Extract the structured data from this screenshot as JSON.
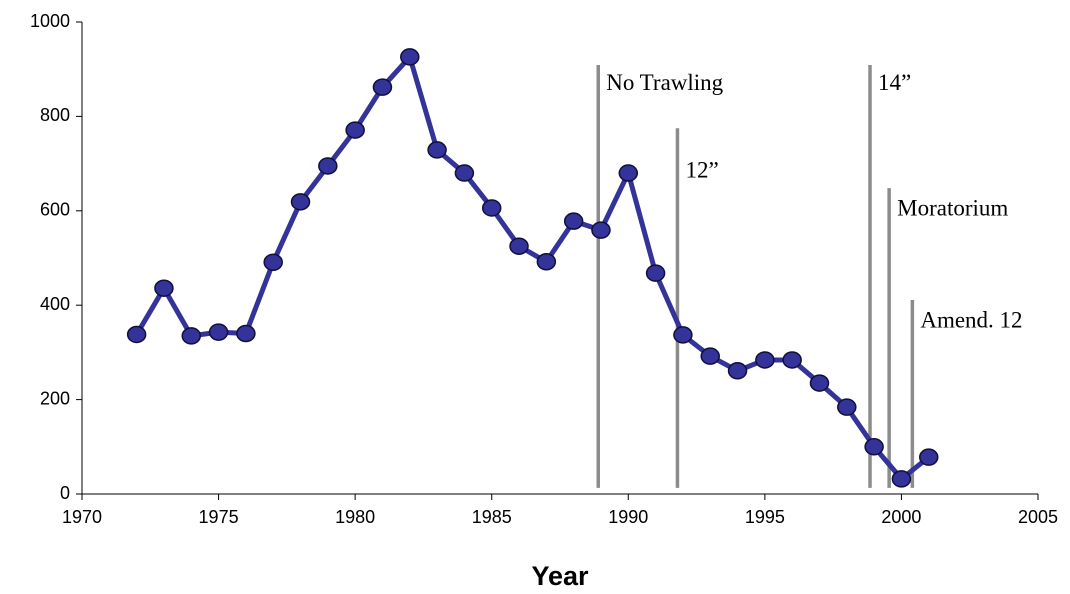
{
  "chart_data": {
    "type": "line",
    "x_label": "Year",
    "x": [
      1972,
      1973,
      1974,
      1975,
      1976,
      1977,
      1978,
      1979,
      1980,
      1981,
      1982,
      1983,
      1984,
      1985,
      1986,
      1987,
      1988,
      1989,
      1990,
      1991,
      1992,
      1993,
      1994,
      1995,
      1996,
      1997,
      1998,
      1999,
      2000,
      2001
    ],
    "series": [
      {
        "color": "#33339a",
        "values": [
          338,
          436,
          335,
          343,
          340,
          491,
          619,
          695,
          771,
          862,
          926,
          729,
          680,
          606,
          525,
          492,
          578,
          559,
          680,
          468,
          337,
          292,
          261,
          284,
          284,
          235,
          184,
          100,
          32,
          78
        ]
      }
    ],
    "xlim": [
      1970,
      2005
    ],
    "xticks": [
      1970,
      1975,
      1980,
      1985,
      1990,
      1995,
      2000,
      2005
    ],
    "ylim": [
      0,
      1000
    ],
    "yticks": [
      0,
      200,
      400,
      600,
      800,
      1000
    ],
    "annotations": [
      {
        "label": "No Trawling",
        "x": 1988.9,
        "top": 909,
        "bottom": 13
      },
      {
        "label": "12”",
        "x": 1991.8,
        "top": 775,
        "bottom": 13
      },
      {
        "label": "14”",
        "x": 1998.85,
        "top": 909,
        "bottom": 13
      },
      {
        "label": "Moratorium",
        "x": 1999.55,
        "top": 648,
        "bottom": 13
      },
      {
        "label": "Amend. 12",
        "x": 2000.4,
        "top": 411,
        "bottom": 13
      }
    ],
    "annotation_color": "#8c8c8c"
  }
}
